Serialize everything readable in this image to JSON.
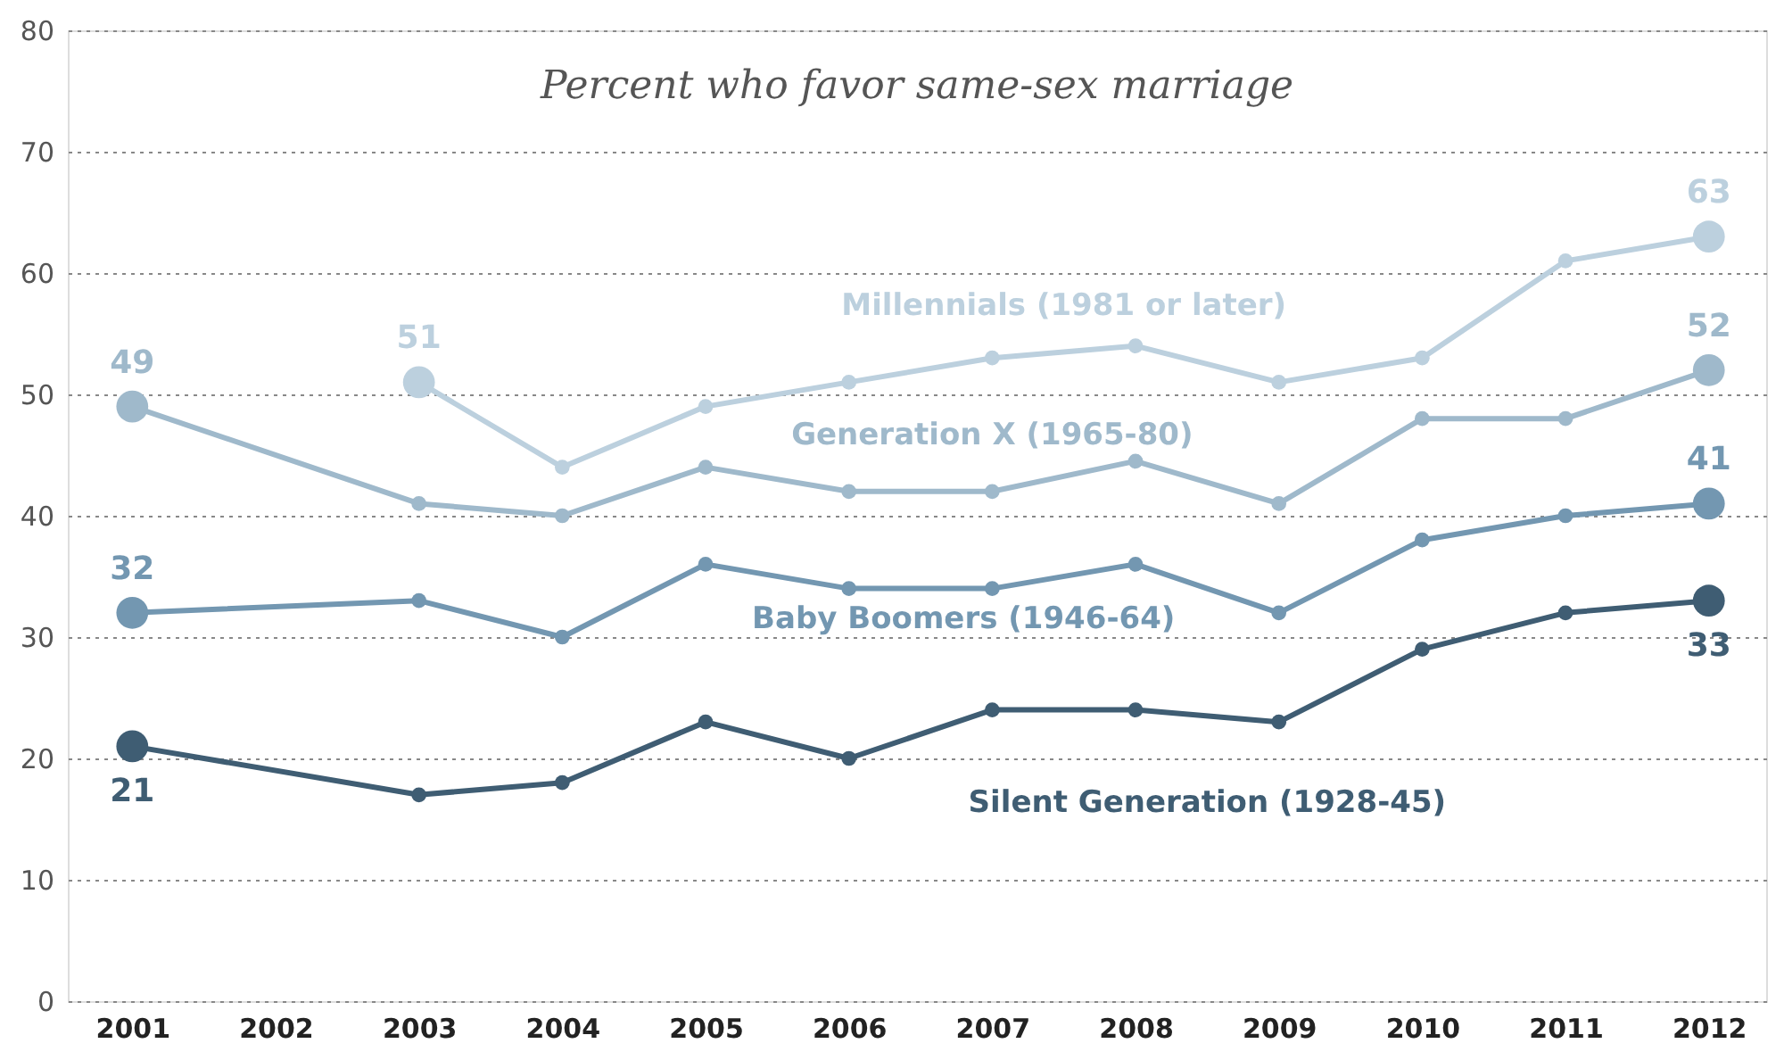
{
  "chart_data": {
    "type": "line",
    "title": "Percent who favor same-sex marriage",
    "categories": [
      "2001",
      "2002",
      "2003",
      "2004",
      "2005",
      "2006",
      "2007",
      "2008",
      "2009",
      "2010",
      "2011",
      "2012"
    ],
    "series": [
      {
        "name": "Millennials (1981 or later)",
        "color": "#bcd0de",
        "values": [
          null,
          null,
          51,
          44,
          49,
          51,
          53,
          54,
          51,
          53,
          61,
          63
        ],
        "value_labels": [
          null,
          null,
          "51",
          null,
          null,
          null,
          null,
          null,
          null,
          null,
          null,
          "63"
        ]
      },
      {
        "name": "Generation X (1965-80)",
        "color": "#9fb9cb",
        "values": [
          49,
          null,
          41,
          40,
          44,
          42,
          42,
          44.5,
          41,
          48,
          48,
          52
        ],
        "value_labels": [
          "49",
          null,
          null,
          null,
          null,
          null,
          null,
          null,
          null,
          null,
          null,
          "52"
        ]
      },
      {
        "name": "Baby Boomers (1946-64)",
        "color": "#7397b1",
        "values": [
          32,
          null,
          33,
          30,
          36,
          34,
          34,
          36,
          32,
          38,
          40,
          41
        ],
        "value_labels": [
          "32",
          null,
          null,
          null,
          null,
          null,
          null,
          null,
          null,
          null,
          null,
          "41"
        ]
      },
      {
        "name": "Silent Generation (1928-45)",
        "color": "#3f5d73",
        "values": [
          21,
          null,
          17,
          18,
          23,
          20,
          24,
          24,
          23,
          29,
          32,
          33
        ],
        "value_labels": [
          "21",
          null,
          null,
          null,
          null,
          null,
          null,
          null,
          null,
          null,
          null,
          "33"
        ]
      }
    ],
    "ylim": [
      0,
      80
    ],
    "yticks": [
      0,
      10,
      20,
      30,
      40,
      50,
      60,
      70,
      80
    ],
    "grid": "y",
    "legend": false,
    "marker": "circle",
    "line_style": "solid"
  }
}
